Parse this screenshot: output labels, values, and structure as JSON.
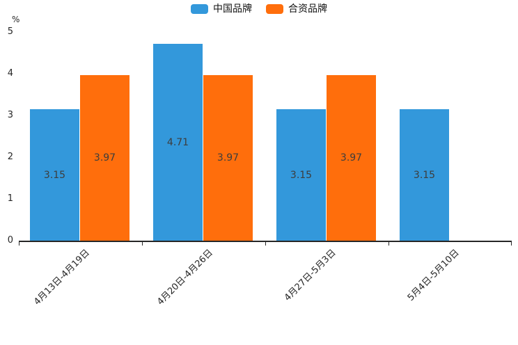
{
  "chart_data": {
    "type": "bar",
    "title": "",
    "unit_label": "%",
    "categories": [
      "4月13日-4月19日",
      "4月20日-4月26日",
      "4月27日-5月3日",
      "5月4日-5月10日"
    ],
    "series": [
      {
        "name": "中国品牌",
        "color": "#3398DB",
        "values": [
          3.15,
          4.71,
          3.15,
          3.15
        ]
      },
      {
        "name": "合资品牌",
        "color": "#FF6E0C",
        "values": [
          3.97,
          3.97,
          3.97,
          null
        ]
      }
    ],
    "value_labels": [
      [
        "3.15",
        "4.71",
        "3.15",
        "3.15"
      ],
      [
        "3.97",
        "3.97",
        "3.97",
        null
      ]
    ],
    "ylim": [
      0,
      5
    ],
    "yticks": [
      "0",
      "1",
      "2",
      "3",
      "4",
      "5"
    ],
    "grid": false,
    "legend_position": "top"
  },
  "colors": {
    "axis": "#262626",
    "value_label_text": "#3d3d3d",
    "background": "#ffffff"
  }
}
